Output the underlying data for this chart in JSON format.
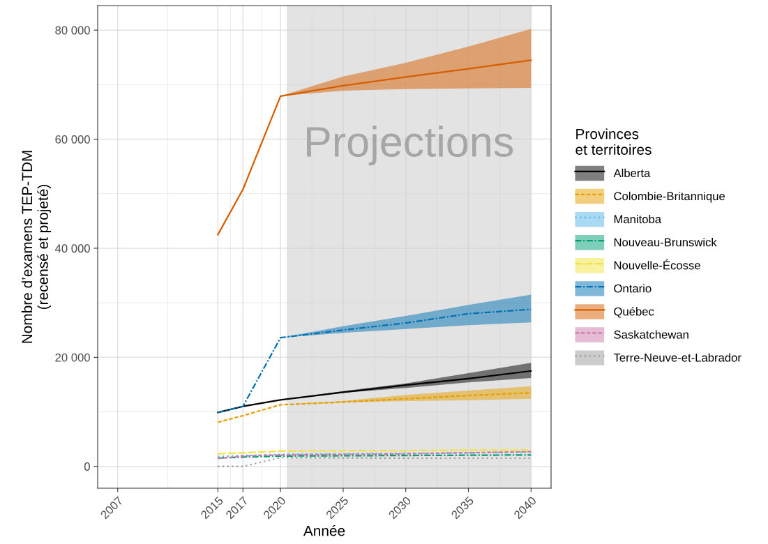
{
  "chart_data": {
    "type": "line",
    "xlabel": "Année",
    "ylabel": "Nombre d’examens TEP-TDM\n(recensé et projeté)",
    "legend_title": "Provinces\net territoires",
    "legend": "right",
    "grid": true,
    "xlim": [
      2005.4,
      2041.6
    ],
    "xticks": [
      2007,
      2015,
      2017,
      2020,
      2025,
      2030,
      2035,
      2040
    ],
    "ylim": [
      -4000,
      84500
    ],
    "yticks": [
      {
        "value": 0,
        "label": "0"
      },
      {
        "value": 20000,
        "label": "20 000"
      },
      {
        "value": 40000,
        "label": "40 000"
      },
      {
        "value": 60000,
        "label": "60 000"
      },
      {
        "value": 80000,
        "label": "80 000"
      }
    ],
    "bands": [
      {
        "axis": "x",
        "from": 2020.5,
        "to": 2040,
        "label": "Projections",
        "color": "#e3e3e3"
      }
    ],
    "series": [
      {
        "name": "Alberta",
        "color": "#000000",
        "line_style": "solid",
        "x": [
          2015,
          2017,
          2020,
          2025,
          2030,
          2035,
          2040
        ],
        "values": [
          9900,
          11000,
          12200,
          13600,
          14900,
          16100,
          17500
        ],
        "lower": [
          9900,
          11000,
          12200,
          13500,
          14400,
          15400,
          16200
        ],
        "upper": [
          9900,
          11000,
          12200,
          13800,
          15200,
          17100,
          19000
        ]
      },
      {
        "name": "Colombie-Britannique",
        "color": "#e69f00",
        "line_style": "dashed",
        "x": [
          2015,
          2017,
          2020,
          2025,
          2030,
          2035,
          2040
        ],
        "values": [
          8100,
          9300,
          11300,
          11800,
          12400,
          13000,
          13500
        ],
        "lower": [
          8100,
          9300,
          11300,
          11700,
          12000,
          12100,
          12400
        ],
        "upper": [
          8100,
          9300,
          11300,
          12000,
          13100,
          13900,
          14700
        ]
      },
      {
        "name": "Manitoba",
        "color": "#56b4e9",
        "line_style": "dotted",
        "x": [
          2015,
          2017,
          2020,
          2030,
          2040
        ],
        "values": [
          1800,
          2000,
          2200,
          2400,
          2600
        ]
      },
      {
        "name": "Nouveau-Brunswick",
        "color": "#009e73",
        "line_style": "dashdot",
        "x": [
          2015,
          2017,
          2020,
          2030,
          2040
        ],
        "values": [
          1530,
          1700,
          1900,
          2000,
          2100
        ]
      },
      {
        "name": "Nouvelle-Écosse",
        "color": "#f0e442",
        "line_style": "longdash",
        "x": [
          2015,
          2017,
          2020,
          2025,
          2030,
          2035,
          2040
        ],
        "values": [
          2300,
          2500,
          2800,
          2900,
          2900,
          3000,
          3000
        ]
      },
      {
        "name": "Ontario",
        "color": "#0072b2",
        "line_style": "dashdot",
        "x": [
          2015,
          2017,
          2020,
          2025,
          2030,
          2035,
          2040
        ],
        "values": [
          9900,
          11000,
          23600,
          25000,
          26300,
          28000,
          28800
        ],
        "lower": [
          9900,
          11000,
          23600,
          24500,
          25200,
          25900,
          26400
        ],
        "upper": [
          9900,
          11000,
          23600,
          25700,
          27600,
          29600,
          31500
        ]
      },
      {
        "name": "Québec",
        "color": "#d55e00",
        "line_style": "solid",
        "x": [
          2015,
          2017,
          2020,
          2025,
          2030,
          2035,
          2040
        ],
        "values": [
          42500,
          50800,
          67900,
          69800,
          71400,
          72900,
          74500
        ],
        "lower": [
          42500,
          50800,
          67900,
          68900,
          69200,
          69300,
          69400
        ],
        "upper": [
          42500,
          50800,
          67900,
          71500,
          74000,
          77000,
          80200
        ]
      },
      {
        "name": "Saskatchewan",
        "color": "#cc79a7",
        "line_style": "dashed",
        "x": [
          2015,
          2017,
          2020,
          2030,
          2040
        ],
        "values": [
          1450,
          1900,
          2100,
          2300,
          2700
        ]
      },
      {
        "name": "Terre-Neuve-et-Labrador",
        "color": "#999999",
        "line_style": "dotted",
        "x": [
          2015,
          2017,
          2020,
          2030,
          2040
        ],
        "values": [
          0,
          0,
          1600,
          1500,
          1500
        ]
      }
    ]
  }
}
